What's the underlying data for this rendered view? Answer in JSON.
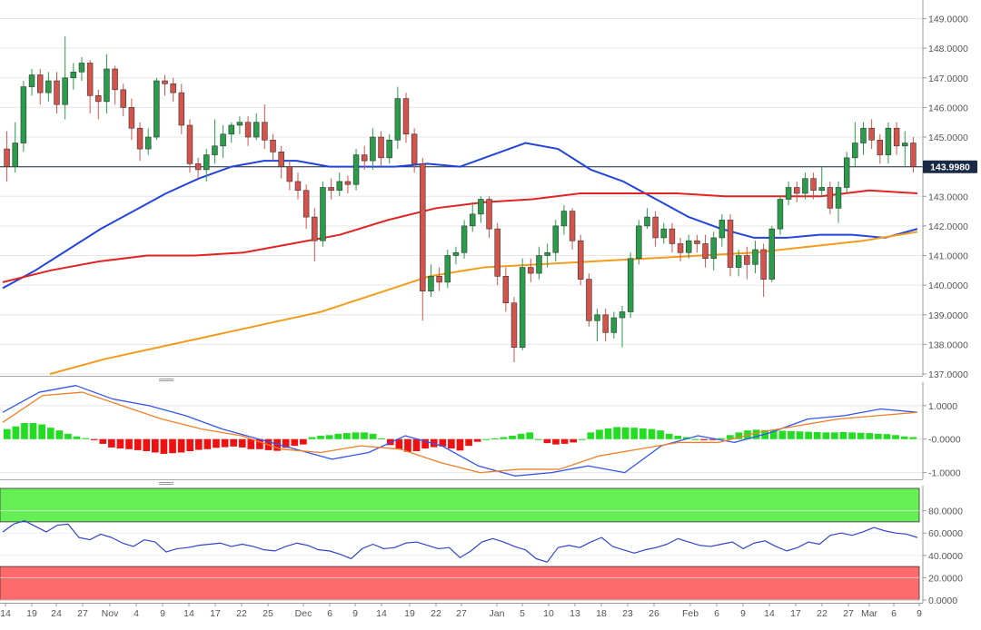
{
  "colors": {
    "bull_candle": "#2a9d4a",
    "bear_candle": "#d4544c",
    "ma_fast": "#2244dd",
    "ma_mid": "#e02424",
    "ma_slow": "#f39b1c",
    "macd_line": "#3355ee",
    "signal_line": "#f07f2a",
    "hist_positive": "#22dd22",
    "hist_negative": "#ee1111",
    "rsi_line": "#3344cc",
    "overbought_zone": "#66ee55",
    "oversold_zone": "#ff6a6a",
    "price_line": "#1a2a44"
  },
  "chart_data": [
    {
      "type": "candlestick",
      "panel": "price",
      "current_price_label": "143.9980",
      "current_price": 143.998,
      "ylim": [
        137.0,
        149.2
      ],
      "y_ticks": [
        "137.0000",
        "138.0000",
        "139.0000",
        "140.0000",
        "141.0000",
        "142.0000",
        "143.0000",
        "144.0000",
        "145.0000",
        "146.0000",
        "147.0000",
        "148.0000",
        "149.0000"
      ],
      "x_ticks": [
        "14",
        "19",
        "24",
        "27",
        "Nov",
        "4",
        "9",
        "14",
        "17",
        "22",
        "25",
        "Dec",
        "6",
        "9",
        "14",
        "19",
        "22",
        "27",
        "Jan",
        "5",
        "10",
        "13",
        "18",
        "23",
        "26",
        "Feb",
        "6",
        "9",
        "14",
        "17",
        "22",
        "27",
        "Mar",
        "6",
        "9"
      ],
      "candles": [
        [
          144.6,
          144.0,
          145.2,
          143.5
        ],
        [
          144.0,
          144.8,
          145.5,
          143.8
        ],
        [
          144.8,
          146.7,
          146.9,
          144.5
        ],
        [
          146.7,
          147.1,
          147.3,
          146.4
        ],
        [
          147.1,
          146.5,
          147.3,
          146.1
        ],
        [
          146.5,
          146.9,
          147.2,
          146.2
        ],
        [
          146.9,
          146.1,
          147.2,
          145.8
        ],
        [
          146.1,
          147.0,
          148.4,
          145.6
        ],
        [
          147.0,
          147.2,
          147.5,
          146.6
        ],
        [
          147.2,
          147.5,
          147.7,
          146.9
        ],
        [
          147.5,
          146.4,
          147.6,
          145.8
        ],
        [
          146.4,
          146.2,
          146.6,
          145.6
        ],
        [
          146.2,
          147.3,
          147.8,
          145.8
        ],
        [
          147.3,
          146.6,
          147.4,
          146.1
        ],
        [
          146.6,
          146.0,
          146.8,
          145.7
        ],
        [
          146.0,
          145.3,
          146.3,
          144.9
        ],
        [
          145.3,
          144.6,
          145.5,
          144.2
        ],
        [
          144.6,
          145.0,
          145.3,
          144.4
        ],
        [
          145.0,
          146.9,
          147.0,
          144.9
        ],
        [
          146.9,
          146.8,
          147.1,
          146.4
        ],
        [
          146.8,
          146.5,
          147.0,
          146.2
        ],
        [
          146.5,
          145.4,
          146.8,
          145.1
        ],
        [
          145.4,
          144.1,
          145.6,
          143.8
        ],
        [
          144.1,
          143.9,
          144.3,
          143.6
        ],
        [
          143.9,
          144.4,
          144.6,
          143.5
        ],
        [
          144.4,
          144.7,
          145.6,
          144.1
        ],
        [
          144.7,
          145.1,
          145.4,
          144.3
        ],
        [
          145.1,
          145.4,
          145.5,
          144.8
        ],
        [
          145.4,
          145.5,
          145.7,
          145.1
        ],
        [
          145.5,
          145.0,
          145.7,
          144.7
        ],
        [
          145.0,
          145.5,
          145.8,
          144.9
        ],
        [
          145.5,
          144.9,
          146.1,
          144.6
        ],
        [
          144.9,
          144.5,
          145.1,
          144.2
        ],
        [
          144.5,
          144.0,
          144.7,
          143.6
        ],
        [
          144.0,
          143.5,
          144.2,
          143.2
        ],
        [
          143.5,
          143.2,
          143.8,
          142.9
        ],
        [
          143.2,
          142.3,
          143.4,
          141.9
        ],
        [
          142.3,
          141.5,
          142.6,
          140.8
        ],
        [
          141.5,
          143.3,
          143.5,
          141.3
        ],
        [
          143.3,
          143.2,
          143.6,
          142.9
        ],
        [
          143.2,
          143.5,
          143.8,
          143.0
        ],
        [
          143.5,
          143.4,
          143.7,
          143.1
        ],
        [
          143.4,
          144.4,
          144.6,
          143.2
        ],
        [
          144.4,
          144.2,
          144.7,
          143.9
        ],
        [
          144.2,
          145.0,
          145.3,
          143.9
        ],
        [
          145.0,
          144.3,
          145.2,
          144.0
        ],
        [
          144.3,
          144.9,
          145.1,
          144.1
        ],
        [
          144.9,
          146.3,
          146.7,
          144.6
        ],
        [
          146.3,
          145.1,
          146.5,
          144.8
        ],
        [
          145.1,
          144.1,
          145.3,
          143.8
        ],
        [
          144.1,
          139.8,
          144.3,
          138.8
        ],
        [
          139.8,
          140.3,
          140.7,
          139.6
        ],
        [
          140.3,
          140.1,
          140.6,
          139.8
        ],
        [
          140.1,
          141.0,
          141.2,
          139.9
        ],
        [
          141.0,
          141.1,
          141.3,
          140.7
        ],
        [
          141.1,
          142.0,
          142.2,
          140.9
        ],
        [
          142.0,
          142.4,
          142.8,
          141.8
        ],
        [
          142.4,
          142.9,
          143.0,
          142.1
        ],
        [
          142.9,
          141.9,
          143.0,
          141.6
        ],
        [
          141.9,
          140.3,
          142.1,
          140.0
        ],
        [
          140.3,
          139.4,
          140.6,
          139.1
        ],
        [
          139.4,
          137.9,
          139.6,
          137.4
        ],
        [
          137.9,
          140.6,
          140.9,
          137.8
        ],
        [
          140.6,
          140.4,
          140.9,
          140.1
        ],
        [
          140.4,
          141.0,
          141.3,
          140.2
        ],
        [
          141.0,
          141.1,
          141.4,
          140.6
        ],
        [
          141.1,
          142.0,
          142.2,
          140.8
        ],
        [
          142.0,
          142.5,
          142.7,
          141.7
        ],
        [
          142.5,
          141.5,
          142.6,
          141.2
        ],
        [
          141.5,
          140.2,
          141.7,
          140.0
        ],
        [
          140.2,
          138.8,
          140.4,
          138.6
        ],
        [
          138.8,
          139.0,
          139.2,
          138.1
        ],
        [
          139.0,
          138.4,
          139.2,
          138.1
        ],
        [
          138.4,
          138.9,
          139.1,
          138.2
        ],
        [
          138.9,
          139.1,
          139.3,
          137.9
        ],
        [
          139.1,
          140.9,
          141.1,
          138.9
        ],
        [
          140.9,
          142.0,
          142.2,
          140.7
        ],
        [
          142.0,
          142.3,
          142.6,
          141.9
        ],
        [
          142.3,
          141.6,
          142.5,
          141.3
        ],
        [
          141.6,
          141.9,
          142.1,
          141.4
        ],
        [
          141.9,
          141.4,
          142.1,
          141.1
        ],
        [
          141.4,
          141.1,
          141.6,
          140.8
        ],
        [
          141.1,
          141.5,
          141.7,
          140.9
        ],
        [
          141.5,
          141.4,
          141.7,
          141.1
        ],
        [
          141.4,
          140.9,
          141.7,
          140.6
        ],
        [
          140.9,
          141.6,
          141.8,
          140.5
        ],
        [
          141.6,
          142.2,
          142.4,
          141.3
        ],
        [
          142.2,
          140.6,
          142.4,
          140.3
        ],
        [
          140.6,
          141.0,
          141.2,
          140.3
        ],
        [
          141.0,
          140.7,
          141.3,
          140.2
        ],
        [
          140.7,
          141.2,
          141.5,
          140.4
        ],
        [
          141.2,
          140.2,
          141.4,
          139.6
        ],
        [
          140.2,
          141.9,
          142.0,
          140.1
        ],
        [
          141.9,
          142.9,
          143.0,
          141.7
        ],
        [
          142.9,
          143.3,
          143.5,
          142.7
        ],
        [
          143.3,
          143.1,
          143.5,
          142.8
        ],
        [
          143.1,
          143.6,
          143.8,
          142.9
        ],
        [
          143.6,
          143.2,
          143.8,
          142.9
        ],
        [
          143.2,
          143.3,
          144.0,
          143.0
        ],
        [
          143.3,
          142.6,
          143.5,
          142.4
        ],
        [
          142.6,
          143.3,
          143.5,
          142.1
        ],
        [
          143.3,
          144.3,
          144.5,
          143.1
        ],
        [
          144.3,
          144.8,
          145.5,
          144.0
        ],
        [
          144.8,
          145.3,
          145.5,
          144.4
        ],
        [
          145.3,
          144.9,
          145.6,
          144.6
        ],
        [
          144.9,
          144.4,
          145.1,
          144.1
        ],
        [
          144.4,
          145.3,
          145.5,
          144.1
        ],
        [
          145.3,
          144.7,
          145.5,
          144.4
        ],
        [
          144.7,
          144.8,
          145.2,
          144.0
        ],
        [
          144.8,
          144.0,
          145.0,
          143.8
        ]
      ],
      "series": [
        {
          "name": "ma_fast",
          "values": [
            139.9,
            140.5,
            141.2,
            141.9,
            142.5,
            143.1,
            143.6,
            144.0,
            144.2,
            144.2,
            144.0,
            144.0,
            144.0,
            144.1,
            144.0,
            144.4,
            144.8,
            144.6,
            143.9,
            143.5,
            142.9,
            142.3,
            141.9,
            141.6,
            141.6,
            141.7,
            141.7,
            141.6,
            141.9
          ]
        },
        {
          "name": "ma_mid",
          "values": [
            140.1,
            140.5,
            140.8,
            141.0,
            141.0,
            141.1,
            141.4,
            141.7,
            142.2,
            142.6,
            142.8,
            142.9,
            143.1,
            143.1,
            143.1,
            143.0,
            143.0,
            143.0,
            143.2,
            143.1
          ]
        },
        {
          "name": "ma_slow",
          "values": [
            137.0,
            137.5,
            137.9,
            138.3,
            138.7,
            139.1,
            139.7,
            140.3,
            140.6,
            140.7,
            140.8,
            140.9,
            141.0,
            141.1,
            141.3,
            141.5,
            141.8
          ]
        }
      ]
    },
    {
      "type": "line",
      "panel": "macd",
      "ylim": [
        -1.2,
        1.7
      ],
      "y_ticks": [
        "-1.0000",
        "-0.0000",
        "1.0000"
      ],
      "series": [
        {
          "name": "macd_line",
          "values": [
            0.8,
            1.4,
            1.6,
            1.2,
            1.0,
            0.7,
            0.3,
            0.0,
            -0.3,
            -0.6,
            -0.4,
            0.1,
            -0.2,
            -0.8,
            -1.1,
            -1.0,
            -0.8,
            -1.0,
            -0.2,
            0.1,
            -0.1,
            0.2,
            0.6,
            0.7,
            0.9,
            0.8
          ]
        },
        {
          "name": "signal_line",
          "values": [
            0.5,
            1.3,
            1.4,
            1.0,
            0.6,
            0.3,
            0.1,
            -0.3,
            -0.4,
            -0.2,
            -0.3,
            -0.7,
            -1.0,
            -0.9,
            -0.9,
            -0.5,
            -0.3,
            -0.1,
            -0.1,
            0.2,
            0.4,
            0.6,
            0.7,
            0.8
          ]
        }
      ],
      "histogram": [
        0.3,
        0.38,
        0.48,
        0.48,
        0.44,
        0.34,
        0.26,
        0.16,
        0.08,
        0.03,
        -0.03,
        -0.14,
        -0.25,
        -0.28,
        -0.3,
        -0.33,
        -0.36,
        -0.4,
        -0.44,
        -0.42,
        -0.4,
        -0.36,
        -0.32,
        -0.3,
        -0.26,
        -0.24,
        -0.22,
        -0.25,
        -0.3,
        -0.3,
        -0.33,
        -0.35,
        -0.26,
        -0.2,
        -0.16,
        0.06,
        0.1,
        0.12,
        0.16,
        0.18,
        0.2,
        0.2,
        0.16,
        0.02,
        -0.18,
        -0.3,
        -0.38,
        -0.36,
        -0.28,
        -0.24,
        -0.22,
        -0.28,
        -0.34,
        -0.2,
        -0.08,
        0.0,
        0.02,
        0.06,
        0.1,
        0.16,
        0.2,
        0.0,
        -0.12,
        -0.16,
        -0.14,
        -0.1,
        0.0,
        0.2,
        0.28,
        0.32,
        0.36,
        0.35,
        0.34,
        0.32,
        0.3,
        0.26,
        0.16,
        0.1,
        0.06,
        0.0,
        -0.03,
        -0.02,
        0.03,
        0.12,
        0.2,
        0.26,
        0.28,
        0.27,
        0.26,
        0.25,
        0.24,
        0.23,
        0.22,
        0.21,
        0.2,
        0.2,
        0.21,
        0.2,
        0.19,
        0.18,
        0.16,
        0.15,
        0.12,
        0.08,
        0.06
      ]
    },
    {
      "type": "line",
      "panel": "rsi",
      "ylim": [
        0,
        100
      ],
      "overbought": 70,
      "oversold": 30,
      "y_ticks": [
        "0.0000",
        "20.0000",
        "40.0000",
        "60.0000",
        "80.0000"
      ],
      "series": [
        {
          "name": "rsi_line",
          "values": [
            61,
            68,
            71,
            66,
            61,
            67,
            68,
            56,
            54,
            59,
            56,
            51,
            48,
            54,
            52,
            43,
            46,
            47,
            49,
            50,
            51,
            48,
            50,
            48,
            45,
            44,
            48,
            51,
            49,
            45,
            44,
            41,
            37,
            46,
            50,
            46,
            47,
            51,
            52,
            49,
            46,
            47,
            38,
            44,
            52,
            55,
            52,
            48,
            45,
            37,
            34,
            47,
            49,
            47,
            52,
            56,
            48,
            45,
            42,
            45,
            47,
            50,
            55,
            52,
            49,
            48,
            50,
            52,
            46,
            51,
            53,
            48,
            44,
            47,
            52,
            50,
            58,
            60,
            58,
            61,
            65,
            62,
            60,
            59,
            56
          ]
        }
      ]
    }
  ]
}
